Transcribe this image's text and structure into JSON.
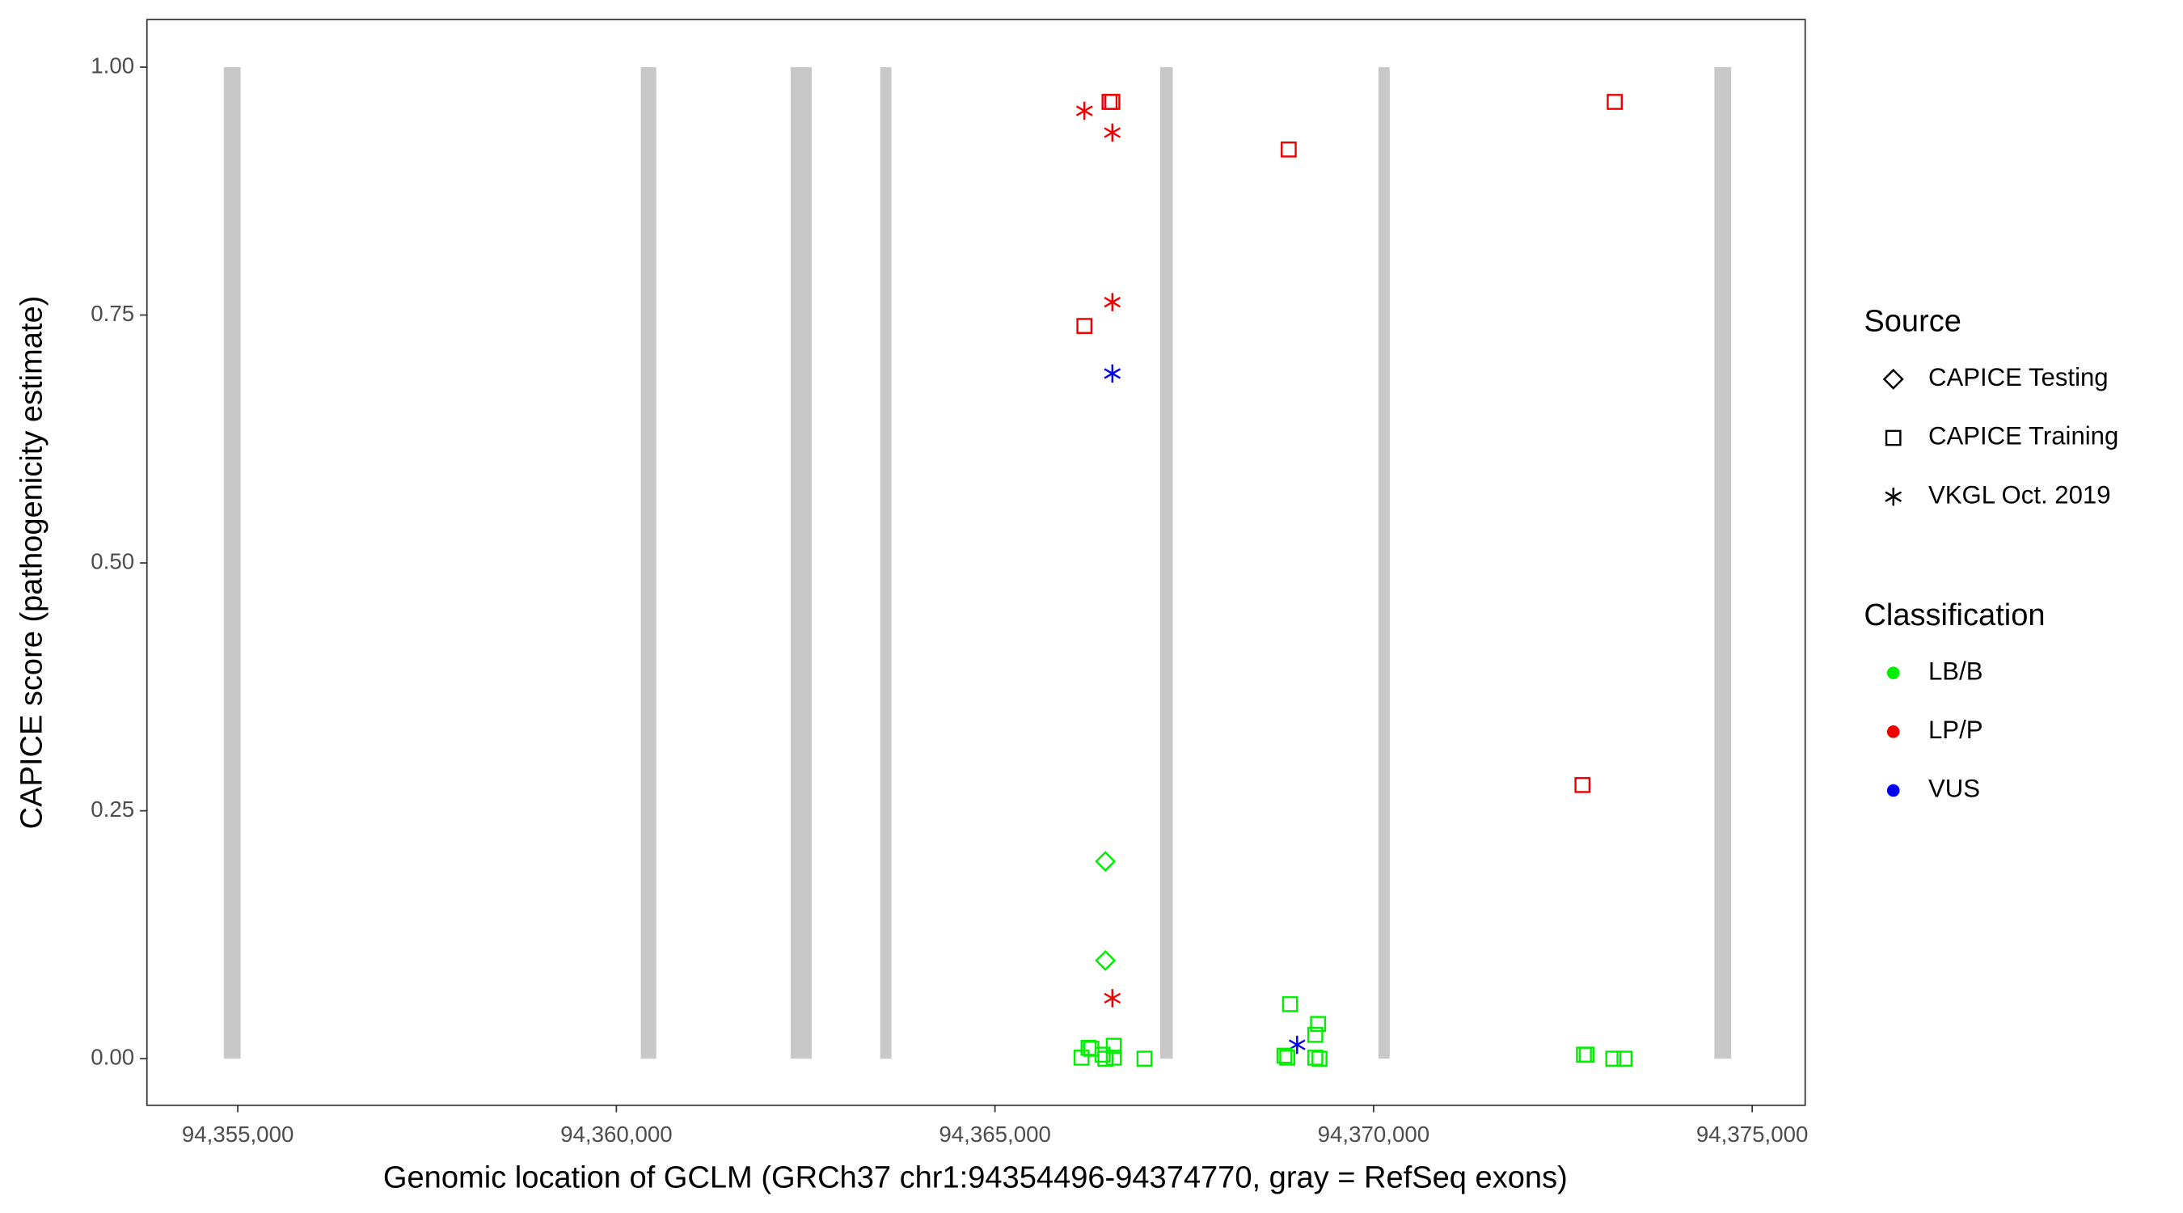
{
  "chart_data": {
    "type": "scatter",
    "x_label": "Genomic location of GCLM (GRCh37 chr1:94354496-94374770, gray = RefSeq exons)",
    "y_label": "CAPICE score (pathogenicity estimate)",
    "xlim": [
      94353800,
      94375700
    ],
    "ylim": [
      -0.047,
      1.048
    ],
    "xticks": [
      {
        "value": 94355000,
        "label": "94,355,000"
      },
      {
        "value": 94360000,
        "label": "94,360,000"
      },
      {
        "value": 94365000,
        "label": "94,365,000"
      },
      {
        "value": 94370000,
        "label": "94,370,000"
      },
      {
        "value": 94375000,
        "label": "94,375,000"
      }
    ],
    "yticks": [
      {
        "value": 0,
        "label": "0.00"
      },
      {
        "value": 0.25,
        "label": "0.25"
      },
      {
        "value": 0.5,
        "label": "0.50"
      },
      {
        "value": 0.75,
        "label": "0.75"
      },
      {
        "value": 1,
        "label": "1.00"
      }
    ],
    "exon_color": "#c8c8c8",
    "exons": [
      {
        "start": 94354815,
        "end": 94355037
      },
      {
        "start": 94360323,
        "end": 94360527
      },
      {
        "start": 94362301,
        "end": 94362579
      },
      {
        "start": 94363484,
        "end": 94363632
      },
      {
        "start": 94367181,
        "end": 94367348
      },
      {
        "start": 94370065,
        "end": 94370213
      },
      {
        "start": 94374501,
        "end": 94374723
      }
    ],
    "source_legend": {
      "title": "Source",
      "items": [
        {
          "name": "CAPICE Testing",
          "shape": "diamond"
        },
        {
          "name": "CAPICE Training",
          "shape": "square"
        },
        {
          "name": "VKGL Oct. 2019",
          "shape": "asterisk"
        }
      ]
    },
    "classification_legend": {
      "title": "Classification",
      "items": [
        {
          "name": "LB/B",
          "color": "#00ee00"
        },
        {
          "name": "LP/P",
          "color": "#ee0000"
        },
        {
          "name": "VUS",
          "color": "#0000ee"
        }
      ]
    },
    "groups": [
      {
        "shape": "square",
        "color": "#ee0000",
        "x": [
          94366513,
          94366550,
          94366181,
          94368879,
          94373185,
          94372759
        ],
        "y": [
          0.965,
          0.965,
          0.739,
          0.917,
          0.965,
          0.276
        ]
      },
      {
        "shape": "asterisk",
        "color": "#ee0000",
        "x": [
          94366181,
          94366550,
          94366550,
          94366550
        ],
        "y": [
          0.956,
          0.934,
          0.763,
          0.061
        ]
      },
      {
        "shape": "asterisk",
        "color": "#0000ee",
        "x": [
          94366550,
          94368990
        ],
        "y": [
          0.691,
          0.014
        ]
      },
      {
        "shape": "diamond",
        "color": "#00ee00",
        "x": [
          94366458,
          94366458
        ],
        "y": [
          0.199,
          0.099
        ]
      },
      {
        "shape": "square",
        "color": "#00ee00",
        "x": [
          94366143,
          94366236,
          94366273,
          94366421,
          94366458,
          94366569,
          94366569,
          94366975,
          94368897,
          94368860,
          94368823,
          94369267,
          94369230,
          94369230,
          94369286,
          94372815,
          94372778,
          94373166,
          94373314
        ],
        "y": [
          0.001,
          0.011,
          0.01,
          0.004,
          0,
          0.013,
          0.001,
          0,
          0.055,
          0.001,
          0.003,
          0.035,
          0.024,
          0.001,
          0,
          0.004,
          0.004,
          0,
          0
        ]
      }
    ]
  }
}
